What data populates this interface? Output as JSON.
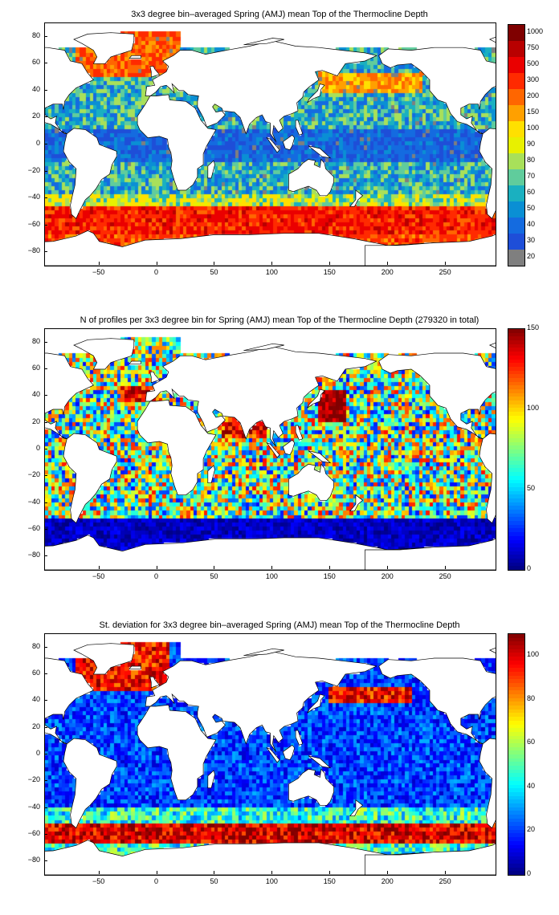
{
  "chart_data": [
    {
      "type": "heatmap",
      "title": "3x3 degree bin–averaged Spring (AMJ) mean Top of the Thermocline Depth",
      "xlabel": "",
      "ylabel": "",
      "xlim": [
        -97,
        293
      ],
      "ylim": [
        -90,
        90
      ],
      "x_ticks": [
        -50,
        0,
        50,
        100,
        150,
        200,
        250
      ],
      "y_ticks": [
        80,
        60,
        40,
        20,
        0,
        -20,
        -40,
        -60,
        -80
      ],
      "x_tick_labels": [
        "−50",
        "0",
        "50",
        "100",
        "150",
        "200",
        "250"
      ],
      "y_tick_labels": [
        "80",
        "60",
        "40",
        "20",
        "0",
        "−20",
        "−40",
        "−60",
        "−80"
      ],
      "colorbar_type": "discrete",
      "colorbar_labels": [
        "1000",
        "750",
        "500",
        "300",
        "200",
        "150",
        "100",
        "90",
        "80",
        "70",
        "60",
        "50",
        "40",
        "30",
        "20"
      ],
      "colorbar_colors": [
        "#7f0000",
        "#b80000",
        "#ea0000",
        "#ff2a00",
        "#ff6600",
        "#ffa000",
        "#ffe000",
        "#e8f000",
        "#a8e05a",
        "#60cc9c",
        "#1ab0c0",
        "#0a8fd4",
        "#146be0",
        "#1e4ed8",
        "#7f7f7f"
      ]
    },
    {
      "type": "heatmap",
      "title": "N of profiles per 3x3 degree bin for Spring (AMJ) mean Top of the Thermocline Depth  (279320 in total)",
      "xlabel": "",
      "ylabel": "",
      "xlim": [
        -97,
        293
      ],
      "ylim": [
        -90,
        90
      ],
      "x_ticks": [
        -50,
        0,
        50,
        100,
        150,
        200,
        250
      ],
      "y_ticks": [
        80,
        60,
        40,
        20,
        0,
        -20,
        -40,
        -60,
        -80
      ],
      "x_tick_labels": [
        "−50",
        "0",
        "50",
        "100",
        "150",
        "200",
        "250"
      ],
      "y_tick_labels": [
        "80",
        "60",
        "40",
        "20",
        "0",
        "−20",
        "−40",
        "−60",
        "−80"
      ],
      "colorbar_type": "continuous",
      "colorbar_range": [
        0,
        150
      ],
      "colorbar_ticks": [
        150,
        100,
        50,
        0
      ],
      "colorbar_tick_labels": [
        "150",
        "100",
        "50",
        "0"
      ]
    },
    {
      "type": "heatmap",
      "title": "St. deviation for 3x3 degree bin–averaged Spring (AMJ) mean Top of the Thermocline Depth",
      "xlabel": "",
      "ylabel": "",
      "xlim": [
        -97,
        293
      ],
      "ylim": [
        -90,
        90
      ],
      "x_ticks": [
        -50,
        0,
        50,
        100,
        150,
        200,
        250
      ],
      "y_ticks": [
        80,
        60,
        40,
        20,
        0,
        -20,
        -40,
        -60,
        -80
      ],
      "x_tick_labels": [
        "−50",
        "0",
        "50",
        "100",
        "150",
        "200",
        "250"
      ],
      "y_tick_labels": [
        "80",
        "60",
        "40",
        "20",
        "0",
        "−20",
        "−40",
        "−60",
        "−80"
      ],
      "colorbar_type": "continuous",
      "colorbar_range": [
        0,
        110
      ],
      "colorbar_ticks": [
        100,
        80,
        60,
        40,
        20,
        0
      ],
      "colorbar_tick_labels": [
        "100",
        "80",
        "60",
        "40",
        "20",
        "0"
      ]
    }
  ]
}
